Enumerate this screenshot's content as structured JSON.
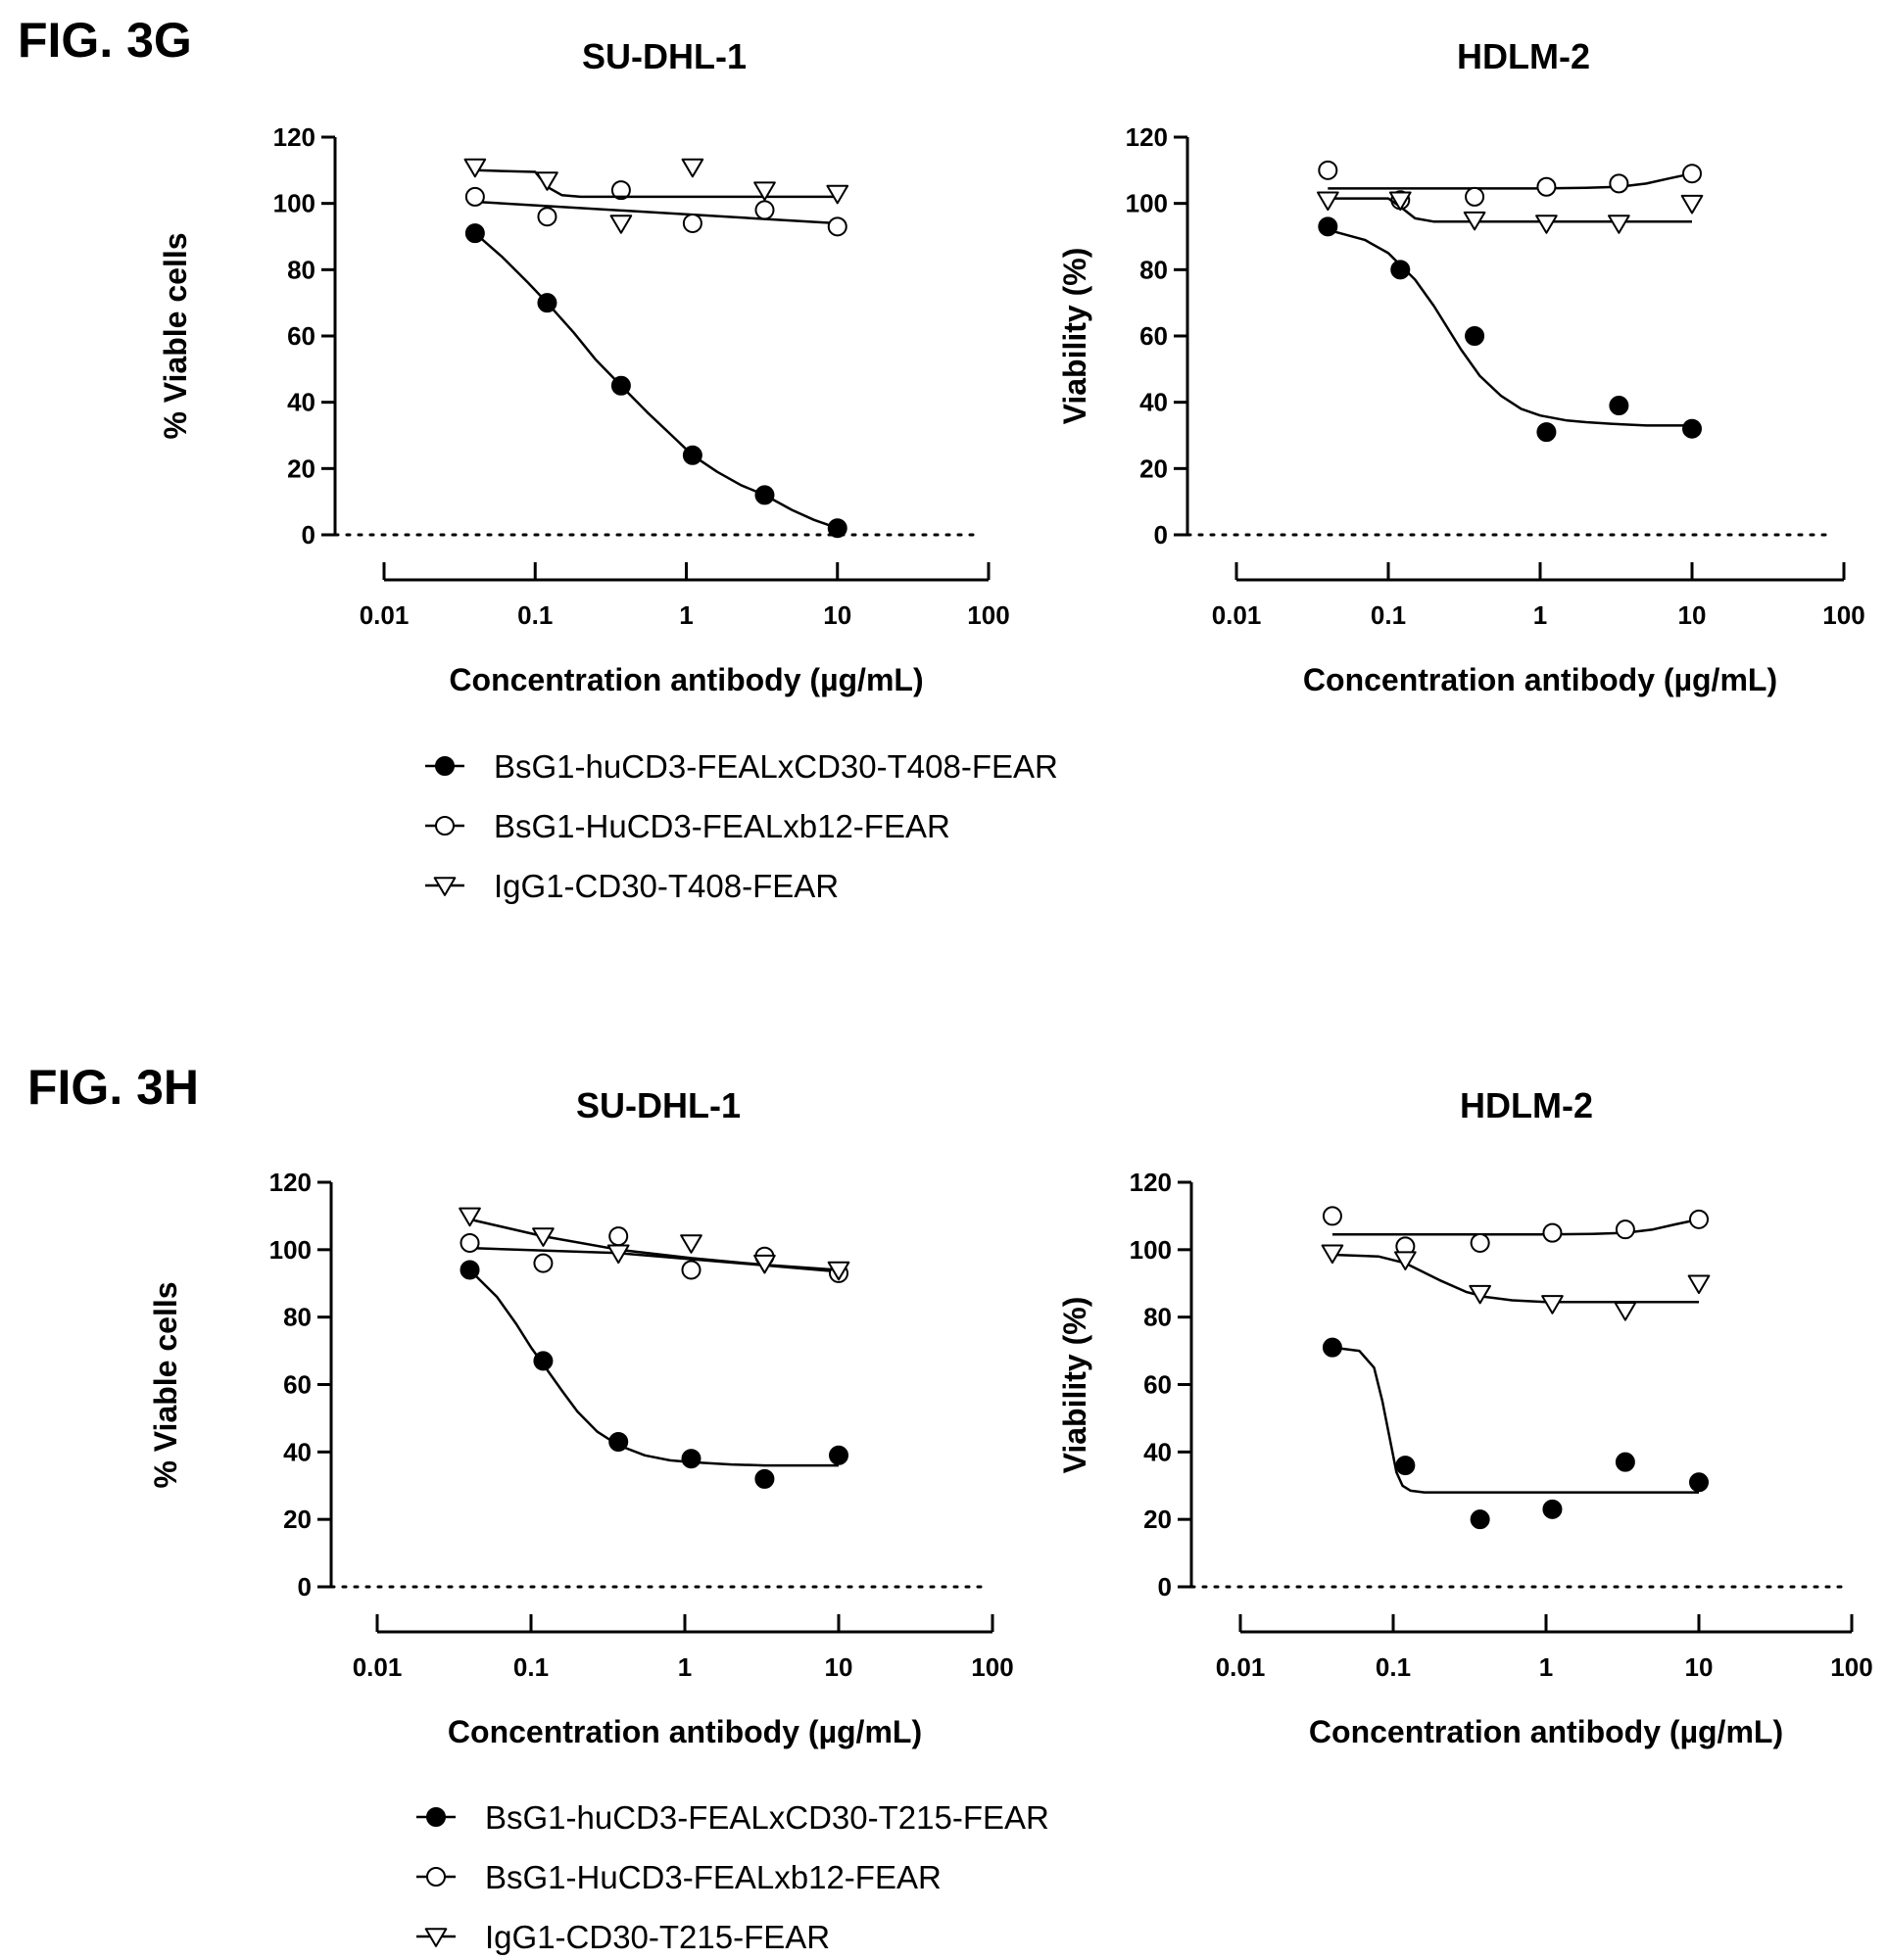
{
  "figures": [
    {
      "label": "FIG. 3G",
      "legend": [
        {
          "marker": "filled-circle",
          "text": "BsG1-huCD3-FEALxCD30-T408-FEAR"
        },
        {
          "marker": "open-circle",
          "text": "BsG1-HuCD3-FEALxb12-FEAR"
        },
        {
          "marker": "open-triangle",
          "text": "IgG1-CD30-T408-FEAR"
        }
      ]
    },
    {
      "label": "FIG. 3H",
      "legend": [
        {
          "marker": "filled-circle",
          "text": "BsG1-huCD3-FEALxCD30-T215-FEAR"
        },
        {
          "marker": "open-circle",
          "text": "BsG1-HuCD3-FEALxb12-FEAR"
        },
        {
          "marker": "open-triangle",
          "text": "IgG1-CD30-T215-FEAR"
        }
      ]
    }
  ],
  "chart_data": [
    {
      "figure": "FIG. 3G",
      "type": "scatter",
      "title": "SU-DHL-1",
      "xlabel": "Concentration antibody (µg/mL)",
      "ylabel": "% Viable cells",
      "xscale": "log",
      "xlim": [
        0.01,
        100
      ],
      "ylim": [
        0,
        120
      ],
      "xticks": [
        "0.01",
        "0.1",
        "1",
        "10",
        "100"
      ],
      "yticks": [
        "0",
        "20",
        "40",
        "60",
        "80",
        "100",
        "120"
      ],
      "reference_line": {
        "y": 0,
        "style": "dotted"
      },
      "x": [
        0.04,
        0.12,
        0.37,
        1.1,
        3.3,
        10
      ],
      "series": [
        {
          "name": "BsG1-huCD3-FEALxCD30-T408-FEAR",
          "marker": "filled-circle",
          "values": [
            91,
            70,
            45,
            24,
            12,
            2
          ],
          "fit_x": [
            0.04,
            0.06,
            0.09,
            0.12,
            0.18,
            0.25,
            0.37,
            0.55,
            0.8,
            1.1,
            1.6,
            2.3,
            3.3,
            5,
            7,
            10
          ],
          "fit_y": [
            91,
            84,
            76,
            70,
            61,
            53,
            45,
            37,
            30,
            24,
            19,
            15,
            12,
            7.5,
            4.5,
            2
          ]
        },
        {
          "name": "BsG1-HuCD3-FEALxb12-FEAR",
          "marker": "open-circle",
          "values": [
            102,
            96,
            104,
            94,
            98,
            93
          ],
          "fit_x": [
            0.04,
            10
          ],
          "fit_y": [
            100.5,
            94
          ]
        },
        {
          "name": "IgG1-CD30-T408-FEAR",
          "marker": "open-triangle",
          "values": [
            111,
            107,
            94,
            111,
            104,
            103
          ],
          "fit_x": [
            0.04,
            0.1,
            0.12,
            0.15,
            0.2,
            10
          ],
          "fit_y": [
            110,
            109.5,
            105,
            102.5,
            102,
            102
          ]
        }
      ]
    },
    {
      "figure": "FIG. 3G",
      "type": "scatter",
      "title": "HDLM-2",
      "xlabel": "Concentration antibody (µg/mL)",
      "ylabel": "Viability  (%)",
      "xscale": "log",
      "xlim": [
        0.01,
        100
      ],
      "ylim": [
        0,
        120
      ],
      "xticks": [
        "0.01",
        "0.1",
        "1",
        "10",
        "100"
      ],
      "yticks": [
        "0",
        "20",
        "40",
        "60",
        "80",
        "100",
        "120"
      ],
      "reference_line": {
        "y": 0,
        "style": "dotted"
      },
      "x": [
        0.04,
        0.12,
        0.37,
        1.1,
        3.3,
        10
      ],
      "series": [
        {
          "name": "BsG1-huCD3-FEALxCD30-T408-FEAR",
          "marker": "filled-circle",
          "values": [
            93,
            80,
            60,
            31,
            39,
            32
          ],
          "fit_x": [
            0.04,
            0.07,
            0.1,
            0.15,
            0.2,
            0.3,
            0.4,
            0.55,
            0.75,
            1,
            1.5,
            2,
            3,
            5,
            10
          ],
          "fit_y": [
            92,
            89,
            85,
            77,
            69,
            56,
            48,
            42,
            38,
            36,
            34.5,
            34,
            33.5,
            33,
            33
          ]
        },
        {
          "name": "BsG1-HuCD3-FEALxb12-FEAR",
          "marker": "open-circle",
          "values": [
            110,
            101,
            102,
            105,
            106,
            109
          ],
          "fit_x": [
            0.04,
            1,
            2,
            3.3,
            5,
            7,
            10
          ],
          "fit_y": [
            104.5,
            104.5,
            104.7,
            105,
            106,
            107.5,
            109
          ]
        },
        {
          "name": "IgG1-CD30-T408-FEAR",
          "marker": "open-triangle",
          "values": [
            101,
            101,
            95,
            94,
            94,
            100
          ],
          "fit_x": [
            0.04,
            0.1,
            0.12,
            0.15,
            0.2,
            10
          ],
          "fit_y": [
            101.5,
            101.5,
            99,
            95.5,
            94.5,
            94.5
          ]
        }
      ]
    },
    {
      "figure": "FIG. 3H",
      "type": "scatter",
      "title": "SU-DHL-1",
      "xlabel": "Concentration antibody (µg/mL)",
      "ylabel": "% Viable cells",
      "xscale": "log",
      "xlim": [
        0.01,
        100
      ],
      "ylim": [
        0,
        120
      ],
      "xticks": [
        "0.01",
        "0.1",
        "1",
        "10",
        "100"
      ],
      "yticks": [
        "0",
        "20",
        "40",
        "60",
        "80",
        "100",
        "120"
      ],
      "reference_line": {
        "y": 0,
        "style": "dotted"
      },
      "x": [
        0.04,
        0.12,
        0.37,
        1.1,
        3.3,
        10
      ],
      "series": [
        {
          "name": "BsG1-huCD3-FEALxCD30-T215-FEAR",
          "marker": "filled-circle",
          "values": [
            94,
            67,
            43,
            38,
            32,
            39
          ],
          "fit_x": [
            0.04,
            0.06,
            0.08,
            0.1,
            0.12,
            0.16,
            0.2,
            0.27,
            0.37,
            0.55,
            0.8,
            1.1,
            2,
            3.3,
            10
          ],
          "fit_y": [
            94,
            86,
            78,
            71,
            66,
            58,
            52,
            46,
            42,
            39,
            37.5,
            37,
            36.3,
            36,
            36
          ]
        },
        {
          "name": "BsG1-HuCD3-FEALxb12-FEAR",
          "marker": "open-circle",
          "values": [
            102,
            96,
            104,
            94,
            98,
            93
          ],
          "fit_x": [
            0.04,
            0.37,
            10
          ],
          "fit_y": [
            100.5,
            99,
            93.5
          ]
        },
        {
          "name": "IgG1-CD30-T215-FEAR",
          "marker": "open-triangle",
          "values": [
            110,
            104,
            99,
            102,
            96,
            94
          ],
          "fit_x": [
            0.04,
            0.12,
            0.37,
            1.1,
            3.3,
            10
          ],
          "fit_y": [
            109,
            104,
            100,
            97.5,
            95.5,
            94
          ]
        }
      ]
    },
    {
      "figure": "FIG. 3H",
      "type": "scatter",
      "title": "HDLM-2",
      "xlabel": "Concentration antibody (µg/mL)",
      "ylabel": "Viability  (%)",
      "xscale": "log",
      "xlim": [
        0.01,
        100
      ],
      "ylim": [
        0,
        120
      ],
      "xticks": [
        "0.01",
        "0.1",
        "1",
        "10",
        "100"
      ],
      "yticks": [
        "0",
        "20",
        "40",
        "60",
        "80",
        "100",
        "120"
      ],
      "reference_line": {
        "y": 0,
        "style": "dotted"
      },
      "x": [
        0.04,
        0.12,
        0.37,
        1.1,
        3.3,
        10
      ],
      "series": [
        {
          "name": "BsG1-huCD3-FEALxCD30-T215-FEAR",
          "marker": "filled-circle",
          "values": [
            71,
            36,
            20,
            23,
            37,
            31
          ],
          "fit_x": [
            0.04,
            0.06,
            0.075,
            0.085,
            0.095,
            0.105,
            0.115,
            0.13,
            0.16,
            10
          ],
          "fit_y": [
            71,
            70,
            65,
            55,
            44,
            34,
            30,
            28.5,
            28,
            28
          ]
        },
        {
          "name": "BsG1-HuCD3-FEALxb12-FEAR",
          "marker": "open-circle",
          "values": [
            110,
            101,
            102,
            105,
            106,
            109
          ],
          "fit_x": [
            0.04,
            1,
            2,
            3.3,
            5,
            7,
            10
          ],
          "fit_y": [
            104.5,
            104.5,
            104.7,
            105,
            106,
            107.5,
            109
          ]
        },
        {
          "name": "IgG1-CD30-T215-FEAR",
          "marker": "open-triangle",
          "values": [
            99,
            97,
            87,
            84,
            82,
            90
          ],
          "fit_x": [
            0.04,
            0.08,
            0.12,
            0.2,
            0.3,
            0.4,
            0.6,
            1,
            10
          ],
          "fit_y": [
            98.5,
            98,
            96,
            91,
            87.5,
            86,
            85,
            84.5,
            84.5
          ]
        }
      ]
    }
  ]
}
